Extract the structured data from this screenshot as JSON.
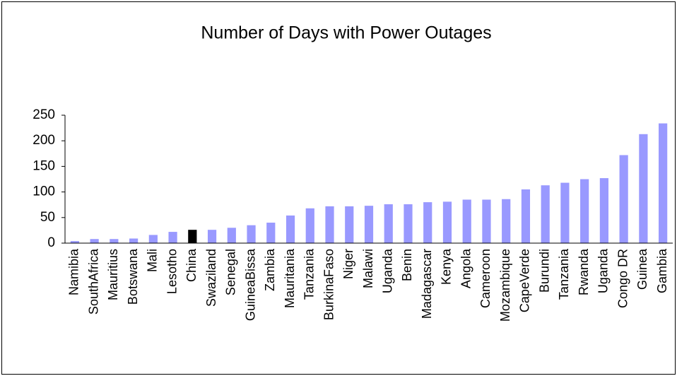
{
  "chart_data": {
    "type": "bar",
    "title": "Number of Days with Power Outages",
    "categories": [
      "Namibia",
      "SouthAfrica",
      "Mauritius",
      "Botswana",
      "Mali",
      "Lesotho",
      "China",
      "Swaziland",
      "Senegal",
      "GuineaBissa",
      "Zambia",
      "Mauritania",
      "Tanzania",
      "BurkinaFaso",
      "Niger",
      "Malawi",
      "Uganda",
      "Benin",
      "Madagascar",
      "Kenya",
      "Angola",
      "Cameroon",
      "Mozambique",
      "CapeVerde",
      "Burundi",
      "Tanzania",
      "Rwanda",
      "Uganda",
      "Congo DR",
      "Guinea",
      "Gambia"
    ],
    "values": [
      4,
      8,
      8,
      9,
      16,
      22,
      26,
      26,
      30,
      35,
      40,
      54,
      68,
      72,
      72,
      73,
      76,
      76,
      80,
      81,
      85,
      85,
      86,
      105,
      113,
      118,
      125,
      127,
      172,
      213,
      234
    ],
    "colors": [
      "#9999ff",
      "#9999ff",
      "#9999ff",
      "#9999ff",
      "#9999ff",
      "#9999ff",
      "#000000",
      "#9999ff",
      "#9999ff",
      "#9999ff",
      "#9999ff",
      "#9999ff",
      "#9999ff",
      "#9999ff",
      "#9999ff",
      "#9999ff",
      "#9999ff",
      "#9999ff",
      "#9999ff",
      "#9999ff",
      "#9999ff",
      "#9999ff",
      "#9999ff",
      "#9999ff",
      "#9999ff",
      "#9999ff",
      "#9999ff",
      "#9999ff",
      "#9999ff",
      "#9999ff",
      "#9999ff"
    ],
    "ylim": [
      0,
      250
    ],
    "yticks": [
      0,
      50,
      100,
      150,
      200,
      250
    ],
    "grid": false
  }
}
